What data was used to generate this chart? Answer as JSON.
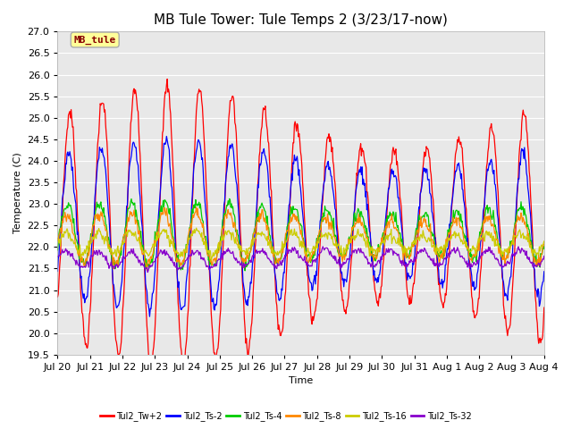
{
  "title": "MB Tule Tower: Tule Temps 2 (3/23/17-now)",
  "xlabel": "Time",
  "ylabel": "Temperature (C)",
  "ylim": [
    19.5,
    27.0
  ],
  "yticks": [
    19.5,
    20.0,
    20.5,
    21.0,
    21.5,
    22.0,
    22.5,
    23.0,
    23.5,
    24.0,
    24.5,
    25.0,
    25.5,
    26.0,
    26.5,
    27.0
  ],
  "xtick_labels": [
    "Jul 20",
    "Jul 21",
    "Jul 22",
    "Jul 23",
    "Jul 24",
    "Jul 25",
    "Jul 26",
    "Jul 27",
    "Jul 28",
    "Jul 29",
    "Jul 30",
    "Jul 31",
    "Aug 1",
    "Aug 2",
    "Aug 3",
    "Aug 4"
  ],
  "series_colors": [
    "#ff0000",
    "#0000ff",
    "#00cc00",
    "#ff8800",
    "#cccc00",
    "#8800cc"
  ],
  "series_labels": [
    "Tul2_Tw+2",
    "Tul2_Ts-2",
    "Tul2_Ts-4",
    "Tul2_Ts-8",
    "Tul2_Ts-16",
    "Tul2_Ts-32"
  ],
  "legend_box_color": "#ffff99",
  "legend_box_label": "MB_tule",
  "legend_box_text_color": "#880000",
  "background_color": "#ffffff",
  "plot_bg_color": "#e8e8e8",
  "grid_color": "#ffffff",
  "title_fontsize": 11,
  "axis_fontsize": 8,
  "tick_fontsize": 8
}
